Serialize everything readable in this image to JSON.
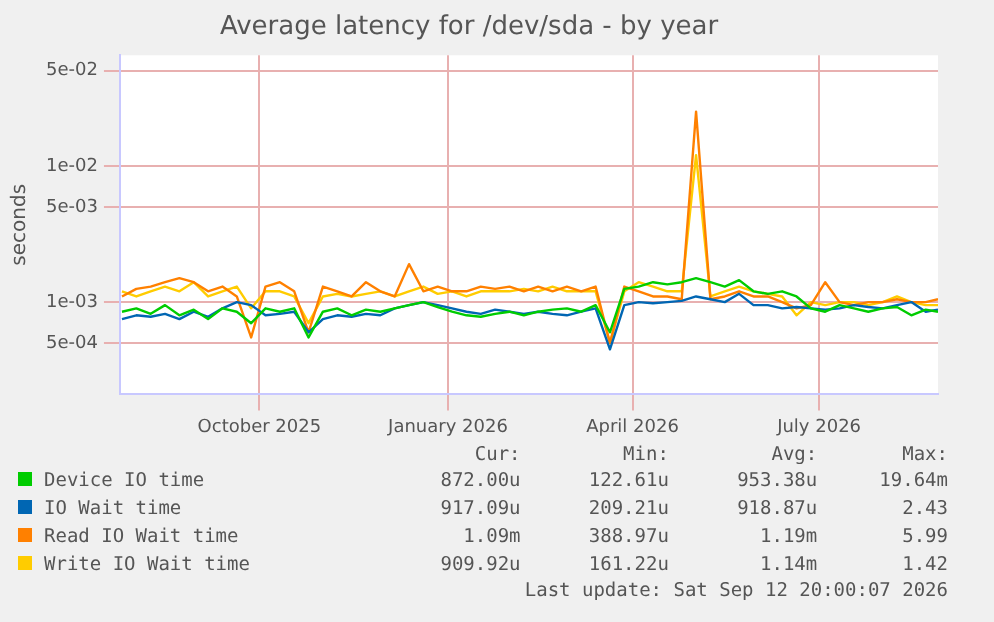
{
  "chart_data": {
    "type": "line",
    "title": "Average latency for /dev/sda - by year",
    "ylabel": "seconds",
    "log": "y",
    "grid": true,
    "legend": "bottom",
    "marker": "none",
    "line_style": "solid",
    "x": [
      "2025-08-10",
      "2025-08-17",
      "2025-08-24",
      "2025-08-31",
      "2025-09-07",
      "2025-09-14",
      "2025-09-21",
      "2025-09-28",
      "2025-10-05",
      "2025-10-12",
      "2025-10-19",
      "2025-10-26",
      "2025-11-02",
      "2025-11-09",
      "2025-11-16",
      "2025-11-23",
      "2025-11-30",
      "2025-12-07",
      "2025-12-14",
      "2025-12-21",
      "2025-12-28",
      "2026-01-04",
      "2026-01-11",
      "2026-01-18",
      "2026-01-25",
      "2026-02-01",
      "2026-02-08",
      "2026-02-15",
      "2026-02-22",
      "2026-03-01",
      "2026-03-08",
      "2026-03-15",
      "2026-03-22",
      "2026-03-29",
      "2026-04-05",
      "2026-04-12",
      "2026-04-19",
      "2026-04-26",
      "2026-05-03",
      "2026-05-10",
      "2026-05-17",
      "2026-05-24",
      "2026-05-31",
      "2026-06-07",
      "2026-06-14",
      "2026-06-21",
      "2026-06-28",
      "2026-07-05",
      "2026-07-12",
      "2026-07-19",
      "2026-07-26",
      "2026-08-02",
      "2026-08-09",
      "2026-08-16",
      "2026-08-23",
      "2026-08-30",
      "2026-09-06",
      "2026-09-12"
    ],
    "xlim": [
      "2025-08-09",
      "2026-09-12"
    ],
    "xticks": [
      {
        "value": "2025-10-16",
        "label": "October 2025"
      },
      {
        "value": "2026-01-16",
        "label": "January 2026"
      },
      {
        "value": "2026-04-16",
        "label": "April 2026"
      },
      {
        "value": "2026-07-16",
        "label": "July 2026"
      }
    ],
    "ylim": [
      0.00021,
      0.065
    ],
    "yticks": [
      {
        "value": 0.0005,
        "label": "5e-04"
      },
      {
        "value": 0.001,
        "label": "1e-03"
      },
      {
        "value": 0.005,
        "label": "5e-03"
      },
      {
        "value": 0.01,
        "label": "1e-02"
      },
      {
        "value": 0.05,
        "label": "5e-02"
      }
    ],
    "series": [
      {
        "name": "Device IO time",
        "color": "#00cc00",
        "values": [
          0.00085,
          0.0009,
          0.00082,
          0.00095,
          0.0008,
          0.00088,
          0.00075,
          0.0009,
          0.00085,
          0.0007,
          0.0009,
          0.00085,
          0.0009,
          0.00055,
          0.00085,
          0.0009,
          0.0008,
          0.00088,
          0.00085,
          0.0009,
          0.00095,
          0.001,
          0.00092,
          0.00085,
          0.0008,
          0.00078,
          0.00082,
          0.00085,
          0.0008,
          0.00085,
          0.00088,
          0.0009,
          0.00085,
          0.00095,
          0.0006,
          0.00125,
          0.0013,
          0.0014,
          0.00135,
          0.0014,
          0.0015,
          0.0014,
          0.0013,
          0.00145,
          0.0012,
          0.00115,
          0.0012,
          0.0011,
          0.0009,
          0.00085,
          0.00095,
          0.0009,
          0.00085,
          0.0009,
          0.00092,
          0.0008,
          0.00088,
          0.00085
        ]
      },
      {
        "name": "IO Wait time",
        "color": "#0066b3",
        "values": [
          0.00075,
          0.0008,
          0.00078,
          0.00082,
          0.00075,
          0.00085,
          0.00078,
          0.0009,
          0.001,
          0.00095,
          0.0008,
          0.00082,
          0.00085,
          0.0006,
          0.00075,
          0.0008,
          0.00078,
          0.00082,
          0.0008,
          0.0009,
          0.00095,
          0.001,
          0.00095,
          0.0009,
          0.00085,
          0.00082,
          0.00088,
          0.00085,
          0.00082,
          0.00085,
          0.00082,
          0.0008,
          0.00085,
          0.0009,
          0.00045,
          0.00095,
          0.001,
          0.00098,
          0.001,
          0.00102,
          0.0011,
          0.00105,
          0.001,
          0.00115,
          0.00095,
          0.00095,
          0.0009,
          0.00092,
          0.0009,
          0.00088,
          0.0009,
          0.00095,
          0.00092,
          0.0009,
          0.00095,
          0.001,
          0.00085,
          0.00088
        ]
      },
      {
        "name": "Read IO Wait time",
        "color": "#ff8000",
        "values": [
          0.0011,
          0.00125,
          0.0013,
          0.0014,
          0.0015,
          0.0014,
          0.0012,
          0.0013,
          0.0011,
          0.00055,
          0.0013,
          0.0014,
          0.0012,
          0.0006,
          0.0013,
          0.0012,
          0.0011,
          0.0014,
          0.0012,
          0.0011,
          0.0019,
          0.0012,
          0.0013,
          0.0012,
          0.0012,
          0.0013,
          0.00125,
          0.0013,
          0.0012,
          0.0013,
          0.0012,
          0.0013,
          0.0012,
          0.0013,
          0.0005,
          0.0013,
          0.0012,
          0.0011,
          0.0011,
          0.00105,
          0.025,
          0.00105,
          0.0011,
          0.0012,
          0.0011,
          0.0011,
          0.001,
          0.0009,
          0.00095,
          0.0014,
          0.001,
          0.00095,
          0.001,
          0.001,
          0.00105,
          0.001,
          0.001,
          0.00105
        ]
      },
      {
        "name": "Write IO Wait time",
        "color": "#ffcc00",
        "values": [
          0.0012,
          0.0011,
          0.0012,
          0.0013,
          0.0012,
          0.0014,
          0.0011,
          0.0012,
          0.0013,
          0.0009,
          0.0012,
          0.0012,
          0.0011,
          0.0007,
          0.0011,
          0.00115,
          0.0011,
          0.00115,
          0.0012,
          0.0011,
          0.0012,
          0.0013,
          0.00115,
          0.0012,
          0.0011,
          0.0012,
          0.0012,
          0.0012,
          0.00125,
          0.0012,
          0.0013,
          0.0012,
          0.0012,
          0.0012,
          0.0005,
          0.0012,
          0.0014,
          0.0013,
          0.0012,
          0.0012,
          0.012,
          0.0011,
          0.0012,
          0.0013,
          0.0012,
          0.00115,
          0.0011,
          0.0008,
          0.001,
          0.00095,
          0.001,
          0.001,
          0.00095,
          0.001,
          0.0011,
          0.001,
          0.00095,
          0.00095
        ]
      }
    ],
    "annotations": [
      "Cur:",
      "Min:",
      "Avg:",
      "Max:",
      "872.00u",
      "122.61u",
      "953.38u",
      "19.64m",
      "917.09u",
      "209.21u",
      "918.87u",
      "2.43",
      "1.09m",
      "388.97u",
      "1.19m",
      "5.99",
      "909.92u",
      "161.22u",
      "1.14m",
      "1.42",
      "Last update: Sat Sep 12 20:00:07 2026"
    ]
  }
}
